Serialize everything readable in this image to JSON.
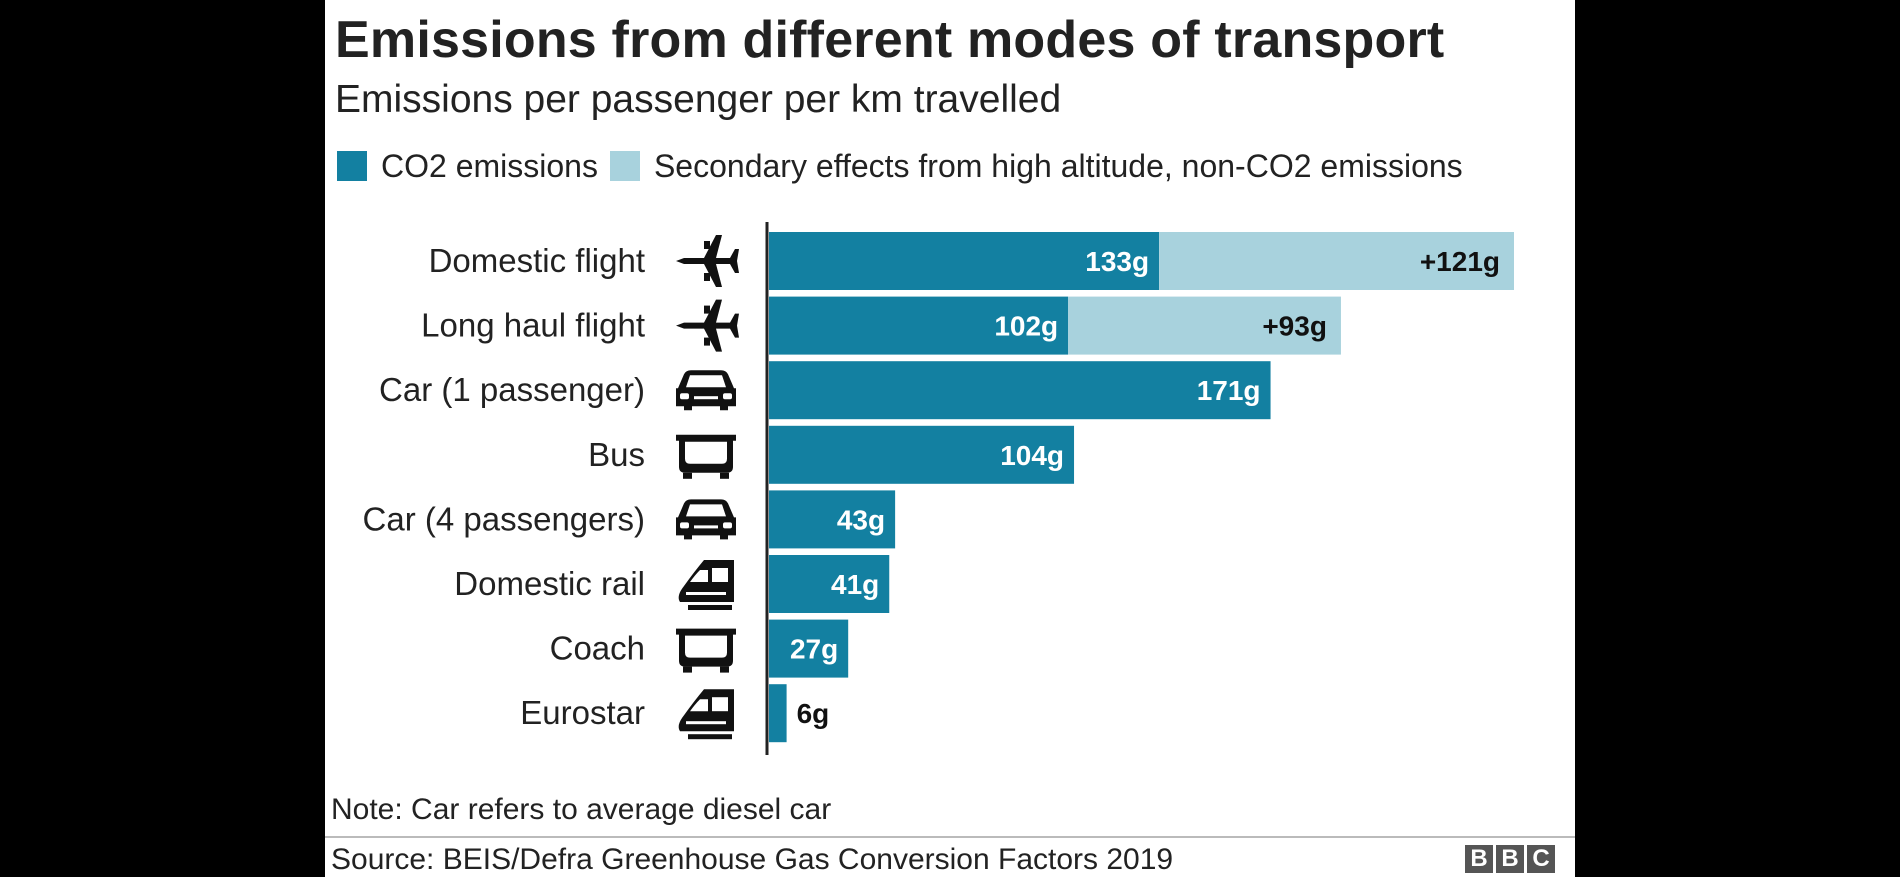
{
  "chart_data": {
    "type": "bar",
    "orientation": "horizontal",
    "stacked": true,
    "title": "Emissions from different modes of transport",
    "subtitle": "Emissions per passenger per km travelled",
    "categories": [
      "Domestic flight",
      "Long haul flight",
      "Car (1 passenger)",
      "Bus",
      "Car (4 passengers)",
      "Domestic rail",
      "Coach",
      "Eurostar"
    ],
    "icons": [
      "plane-icon",
      "plane-icon",
      "car-icon",
      "bus-icon",
      "car-icon",
      "train-icon",
      "bus-icon",
      "train-icon"
    ],
    "series": [
      {
        "name": "CO2 emissions",
        "color": "#1380a1",
        "values": [
          133,
          102,
          171,
          104,
          43,
          41,
          27,
          6
        ],
        "labels": [
          "133g",
          "102g",
          "171g",
          "104g",
          "43g",
          "41g",
          "27g",
          "6g"
        ]
      },
      {
        "name": "Secondary effects from high altitude, non-CO2 emissions",
        "color": "#a8d2dd",
        "values": [
          121,
          93,
          0,
          0,
          0,
          0,
          0,
          0
        ],
        "labels": [
          "+121g",
          "+93g",
          "",
          "",
          "",
          "",
          "",
          ""
        ]
      }
    ],
    "xlim": [
      0,
      254
    ],
    "grid": false,
    "legend_position": "top"
  },
  "note": "Note: Car refers to average diesel car",
  "source": "Source: BEIS/Defra Greenhouse Gas Conversion Factors 2019",
  "logo": [
    "B",
    "B",
    "C"
  ]
}
